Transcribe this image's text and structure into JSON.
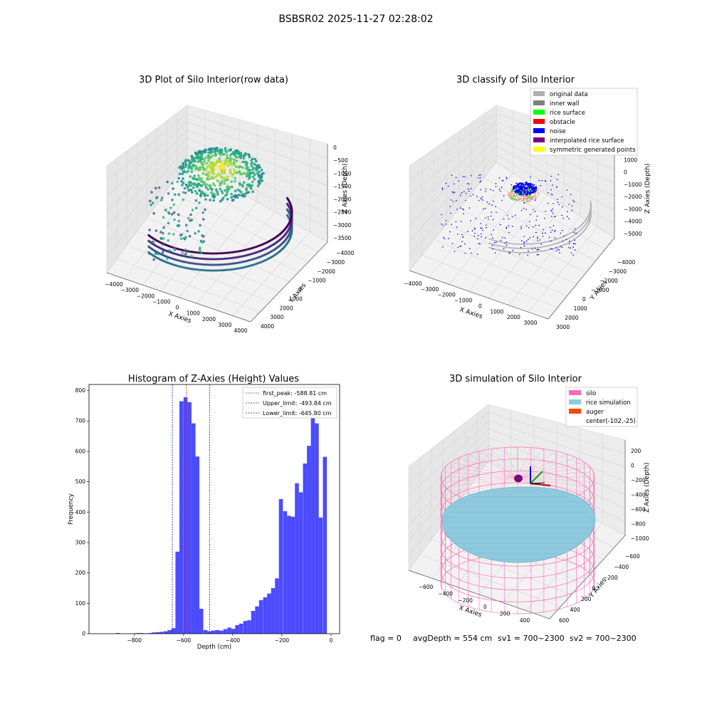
{
  "figure": {
    "suptitle": "BSBSR02 2025-11-27 02:28:02",
    "footer": {
      "flag": "flag = 0",
      "avg": "avgDepth = 554 cm",
      "sv1": "sv1 = 700~2300",
      "sv2": "sv2 = 700~2300"
    }
  },
  "colors": {
    "histogram_bar": "#4b4bff",
    "first_peak_line": "#e02020",
    "limit_line": "#1a1aa8",
    "silo_wire": "#ff69b4",
    "rice": "#8ec9de",
    "auger": "#ff4500",
    "noise": "#0000ff",
    "original_data": "#b0b0b0",
    "inner_wall": "#808080",
    "rice_surface": "#00ff00",
    "obstacle": "#ff0000",
    "interpolated": "#800080",
    "symmetric": "#ffff00"
  },
  "chart_data": [
    {
      "type": "scatter",
      "title": "3D Plot of Silo Interior(row data)",
      "xlabel": "X Axies",
      "ylabel": "Y Axies",
      "zlabel": "Z Axies (Depth)",
      "x_ticks": [
        "−4000",
        "−3000",
        "−2000",
        "−1000",
        "0",
        "1000",
        "2000",
        "3000",
        "4000"
      ],
      "y_ticks": [
        "−4000",
        "−3000",
        "−2000",
        "−1000",
        "0",
        "1000",
        "2000",
        "3000",
        "4000"
      ],
      "z_ticks": [
        "0",
        "−500",
        "−1000",
        "−1500",
        "−2000",
        "−2500",
        "−3000",
        "−3500"
      ],
      "colormap": "viridis",
      "xlim": [
        -4000,
        4000
      ],
      "ylim": [
        -4000,
        4000
      ],
      "zlim": [
        -3700,
        0
      ]
    },
    {
      "type": "scatter",
      "title": "3D classify of Silo Interior",
      "xlabel": "X Axies",
      "ylabel": "Y Axies",
      "zlabel": "Z Axies (Depth)",
      "x_ticks": [
        "−4000",
        "−3000",
        "−2000",
        "−1000",
        "0",
        "1000",
        "2000",
        "3000"
      ],
      "y_ticks": [
        "−4000",
        "−3000",
        "−2000",
        "−1000",
        "0",
        "1000",
        "2000",
        "3000"
      ],
      "z_ticks": [
        "2000",
        "1000",
        "0",
        "−1000",
        "−2000",
        "−3000",
        "−4000",
        "−5000"
      ],
      "legend": [
        "original data",
        "inner wall",
        "rice surface",
        "obstacle",
        "noise",
        "interpolated rice surface",
        "symmetric generated points"
      ],
      "legend_placement": "top-right"
    },
    {
      "type": "bar",
      "title": "Histogram of Z-Axies (Height) Values",
      "xlabel": "Depth (cm)",
      "ylabel": "Frequency",
      "xlim": [
        -985,
        35
      ],
      "ylim": [
        0,
        820
      ],
      "x_ticks": [
        -800,
        -600,
        -400,
        -200,
        0
      ],
      "x_tick_labels": [
        "−800",
        "−600",
        "−400",
        "−200",
        "0"
      ],
      "y_ticks": [
        0,
        100,
        200,
        300,
        400,
        500,
        600,
        700,
        800
      ],
      "bin_width": 16.2,
      "bins": [
        {
          "x": -867,
          "v": 2
        },
        {
          "x": -803,
          "v": 1
        },
        {
          "x": -787,
          "v": 2
        },
        {
          "x": -771,
          "v": 2
        },
        {
          "x": -754,
          "v": 1
        },
        {
          "x": -738,
          "v": 2
        },
        {
          "x": -722,
          "v": 4
        },
        {
          "x": -706,
          "v": 5
        },
        {
          "x": -690,
          "v": 6
        },
        {
          "x": -673,
          "v": 8
        },
        {
          "x": -657,
          "v": 12
        },
        {
          "x": -641,
          "v": 18
        },
        {
          "x": -625,
          "v": 270
        },
        {
          "x": -609,
          "v": 765
        },
        {
          "x": -592,
          "v": 778
        },
        {
          "x": -576,
          "v": 762
        },
        {
          "x": -560,
          "v": 692
        },
        {
          "x": -544,
          "v": 583
        },
        {
          "x": -528,
          "v": 82
        },
        {
          "x": -511,
          "v": 12
        },
        {
          "x": -495,
          "v": 8
        },
        {
          "x": -479,
          "v": 10
        },
        {
          "x": -463,
          "v": 12
        },
        {
          "x": -447,
          "v": 10
        },
        {
          "x": -430,
          "v": 15
        },
        {
          "x": -414,
          "v": 20
        },
        {
          "x": -398,
          "v": 16
        },
        {
          "x": -382,
          "v": 28
        },
        {
          "x": -366,
          "v": 33
        },
        {
          "x": -349,
          "v": 42
        },
        {
          "x": -333,
          "v": 44
        },
        {
          "x": -317,
          "v": 75
        },
        {
          "x": -301,
          "v": 90
        },
        {
          "x": -285,
          "v": 110
        },
        {
          "x": -268,
          "v": 120
        },
        {
          "x": -252,
          "v": 132
        },
        {
          "x": -236,
          "v": 150
        },
        {
          "x": -220,
          "v": 182
        },
        {
          "x": -204,
          "v": 443
        },
        {
          "x": -187,
          "v": 403
        },
        {
          "x": -171,
          "v": 388
        },
        {
          "x": -155,
          "v": 385
        },
        {
          "x": -139,
          "v": 495
        },
        {
          "x": -123,
          "v": 465
        },
        {
          "x": -106,
          "v": 560
        },
        {
          "x": -90,
          "v": 618
        },
        {
          "x": -74,
          "v": 720
        },
        {
          "x": -58,
          "v": 692
        },
        {
          "x": -42,
          "v": 382
        },
        {
          "x": -25,
          "v": 582
        }
      ],
      "series": [
        {
          "name": "first_peak: -588.81 cm",
          "x": -588.81
        },
        {
          "name": "Upper_limit: -493.84 cm",
          "x": -493.84
        },
        {
          "name": "Lower_limit: -645.80 cm",
          "x": -645.8
        }
      ],
      "legend_placement": "top-right"
    },
    {
      "type": "scatter",
      "title": "3D simulation of Silo Interior",
      "xlabel": "X Axies",
      "ylabel": "Y Axies",
      "zlabel": "Z Axies (Depth)",
      "x_ticks": [
        "−600",
        "−400",
        "−200",
        "0",
        "200",
        "400"
      ],
      "y_ticks": [
        "−600",
        "−400",
        "−200",
        "0",
        "200",
        "400",
        "600"
      ],
      "z_ticks": [
        "200",
        "0",
        "−200",
        "−400",
        "−600",
        "−800",
        "−1000"
      ],
      "legend": [
        "silo",
        "rice simulation",
        "auger",
        "center(-102,-25)"
      ],
      "legend_placement": "top-right"
    }
  ]
}
